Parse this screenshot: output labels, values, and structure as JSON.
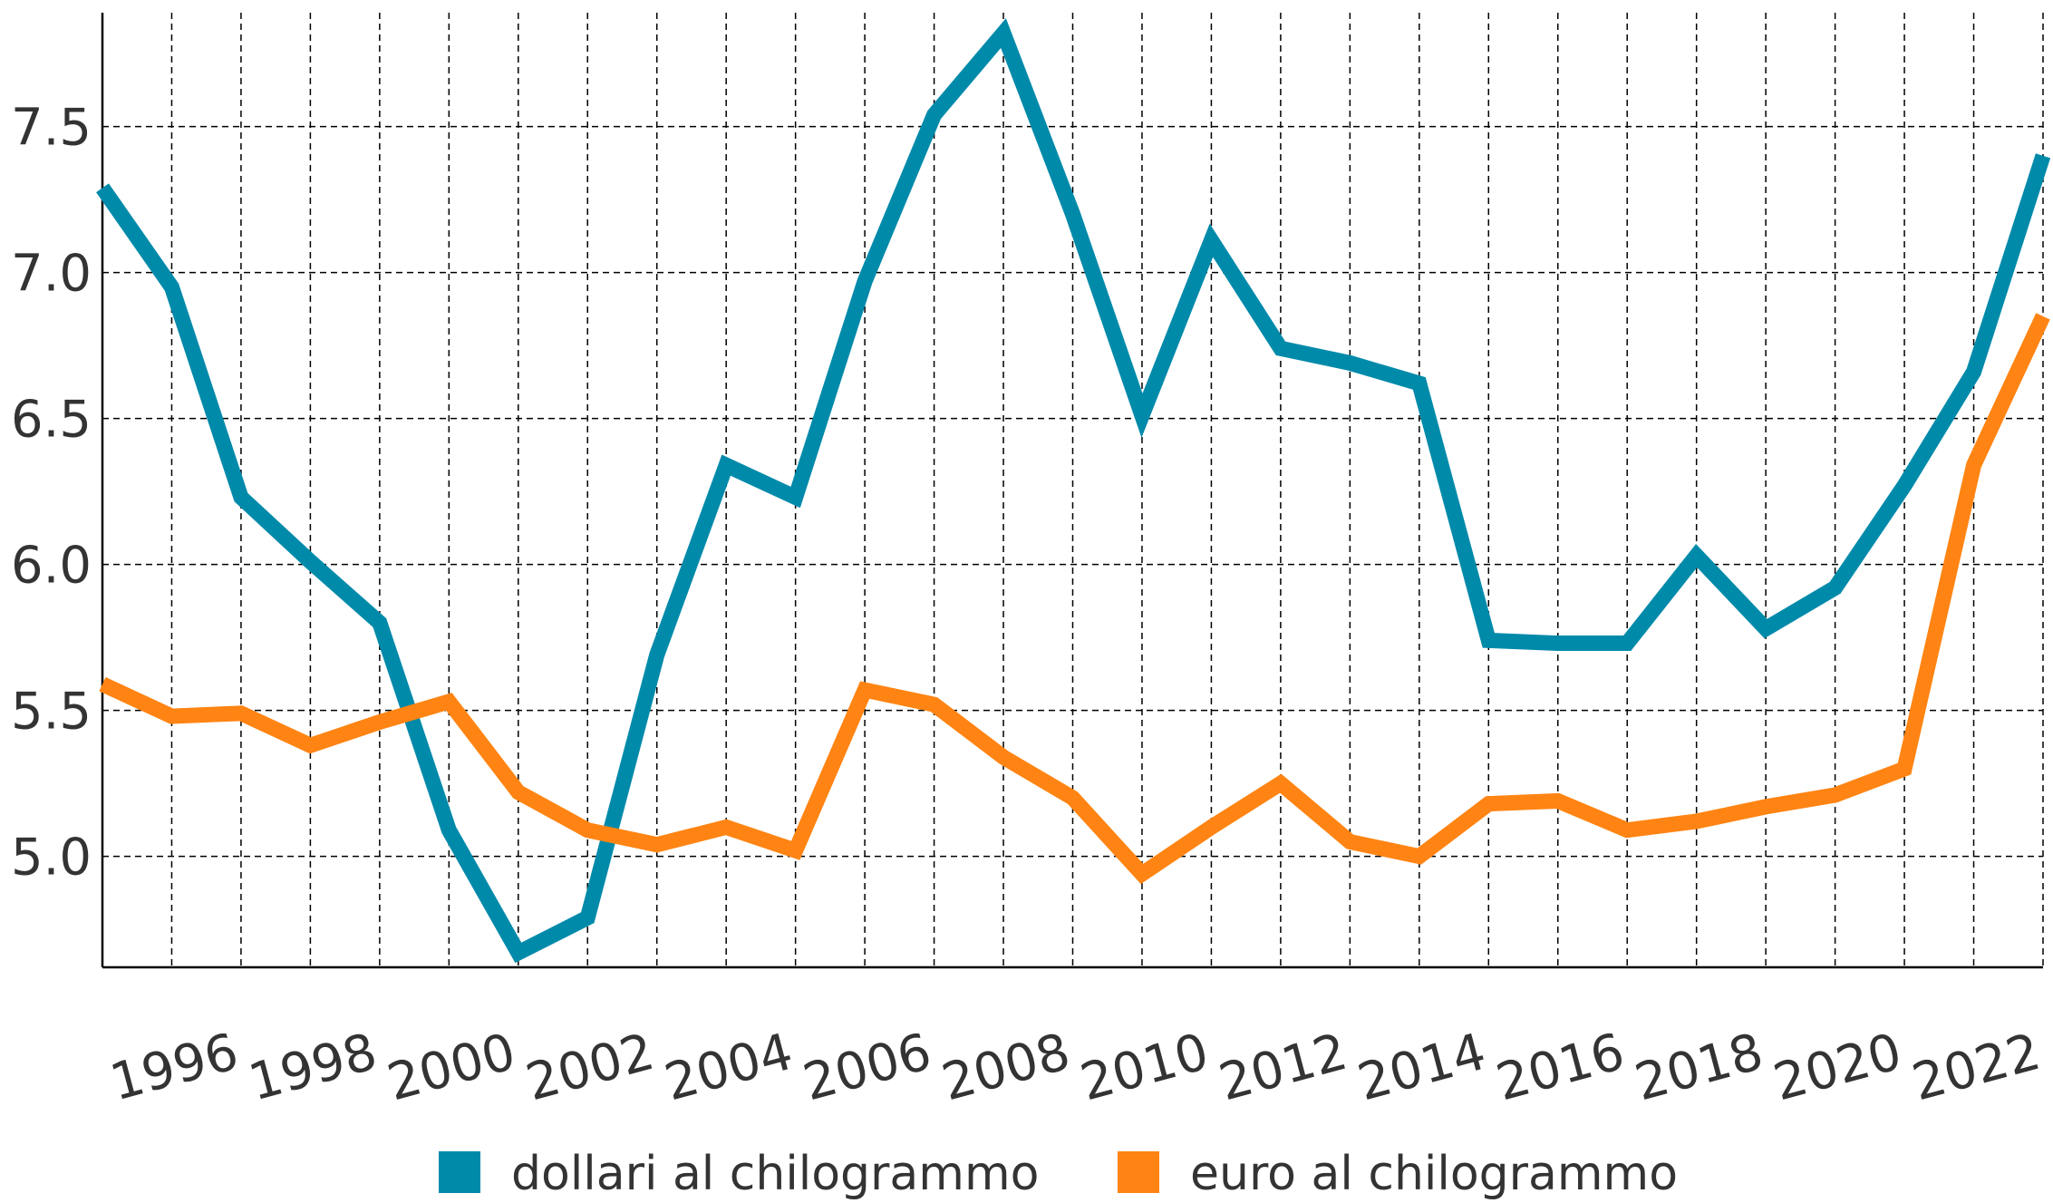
{
  "chart_data": {
    "type": "line",
    "x": [
      1994,
      1995,
      1996,
      1997,
      1998,
      1999,
      2000,
      2001,
      2002,
      2003,
      2004,
      2005,
      2006,
      2007,
      2008,
      2009,
      2010,
      2011,
      2012,
      2013,
      2014,
      2015,
      2016,
      2017,
      2018,
      2019,
      2020,
      2021,
      2022
    ],
    "series": [
      {
        "name": "dollari al chilogrammo",
        "color": "#008aaa",
        "values": [
          7.29,
          6.95,
          6.23,
          6.01,
          5.8,
          5.09,
          4.67,
          4.79,
          5.69,
          6.34,
          6.23,
          6.97,
          7.54,
          7.82,
          7.2,
          6.51,
          7.11,
          6.74,
          6.69,
          6.62,
          5.74,
          5.73,
          5.73,
          6.03,
          5.78,
          5.92,
          6.27,
          6.66,
          7.4
        ]
      },
      {
        "name": "euro al chilogrammo",
        "color": "#ff8413",
        "values": [
          5.59,
          5.48,
          5.49,
          5.38,
          5.46,
          5.53,
          5.22,
          5.09,
          5.04,
          5.1,
          5.02,
          5.57,
          5.52,
          5.34,
          5.2,
          4.94,
          5.1,
          5.25,
          5.05,
          5.0,
          5.18,
          5.19,
          5.09,
          5.12,
          5.17,
          5.21,
          5.3,
          6.34,
          6.85
        ]
      }
    ],
    "xlim": [
      1994,
      2022
    ],
    "xticks": [
      1996,
      1998,
      2000,
      2002,
      2004,
      2006,
      2008,
      2010,
      2012,
      2014,
      2016,
      2018,
      2020,
      2022
    ],
    "ylim": [
      4.62,
      7.89
    ],
    "yticks": [
      {
        "value": 5,
        "label": "5.0"
      },
      5.5,
      {
        "value": 6,
        "label": "6.0"
      },
      6.5,
      {
        "value": 7,
        "label": "7.0"
      },
      7.5
    ],
    "grid": true
  }
}
